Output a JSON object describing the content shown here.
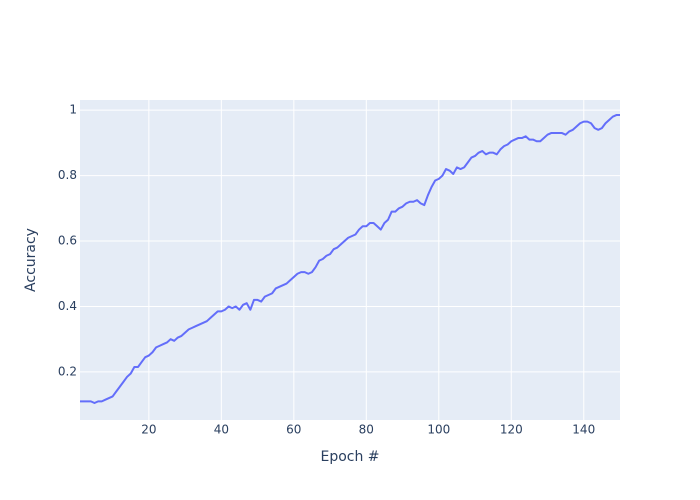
{
  "chart_data": {
    "type": "line",
    "xlabel": "Epoch #",
    "ylabel": "Accuracy",
    "x": [
      1,
      2,
      3,
      4,
      5,
      6,
      7,
      8,
      9,
      10,
      11,
      12,
      13,
      14,
      15,
      16,
      17,
      18,
      19,
      20,
      21,
      22,
      23,
      24,
      25,
      26,
      27,
      28,
      29,
      30,
      31,
      32,
      33,
      34,
      35,
      36,
      37,
      38,
      39,
      40,
      41,
      42,
      43,
      44,
      45,
      46,
      47,
      48,
      49,
      50,
      51,
      52,
      53,
      54,
      55,
      56,
      57,
      58,
      59,
      60,
      61,
      62,
      63,
      64,
      65,
      66,
      67,
      68,
      69,
      70,
      71,
      72,
      73,
      74,
      75,
      76,
      77,
      78,
      79,
      80,
      81,
      82,
      83,
      84,
      85,
      86,
      87,
      88,
      89,
      90,
      91,
      92,
      93,
      94,
      95,
      96,
      97,
      98,
      99,
      100,
      101,
      102,
      103,
      104,
      105,
      106,
      107,
      108,
      109,
      110,
      111,
      112,
      113,
      114,
      115,
      116,
      117,
      118,
      119,
      120,
      121,
      122,
      123,
      124,
      125,
      126,
      127,
      128,
      129,
      130,
      131,
      132,
      133,
      134,
      135,
      136,
      137,
      138,
      139,
      140,
      141,
      142,
      143,
      144,
      145,
      146,
      147,
      148,
      149,
      150
    ],
    "values": [
      0.11,
      0.11,
      0.11,
      0.11,
      0.105,
      0.11,
      0.11,
      0.115,
      0.12,
      0.125,
      0.14,
      0.155,
      0.17,
      0.185,
      0.195,
      0.215,
      0.215,
      0.23,
      0.245,
      0.25,
      0.26,
      0.275,
      0.28,
      0.285,
      0.29,
      0.3,
      0.295,
      0.305,
      0.31,
      0.32,
      0.33,
      0.335,
      0.34,
      0.345,
      0.35,
      0.355,
      0.365,
      0.375,
      0.385,
      0.385,
      0.39,
      0.4,
      0.395,
      0.4,
      0.39,
      0.405,
      0.41,
      0.39,
      0.42,
      0.42,
      0.415,
      0.43,
      0.435,
      0.44,
      0.455,
      0.46,
      0.465,
      0.47,
      0.48,
      0.49,
      0.5,
      0.505,
      0.505,
      0.5,
      0.505,
      0.52,
      0.54,
      0.545,
      0.555,
      0.56,
      0.575,
      0.58,
      0.59,
      0.6,
      0.61,
      0.615,
      0.62,
      0.635,
      0.645,
      0.645,
      0.655,
      0.655,
      0.645,
      0.635,
      0.655,
      0.665,
      0.69,
      0.69,
      0.7,
      0.705,
      0.715,
      0.72,
      0.72,
      0.725,
      0.715,
      0.71,
      0.74,
      0.765,
      0.785,
      0.79,
      0.8,
      0.82,
      0.815,
      0.805,
      0.825,
      0.82,
      0.825,
      0.84,
      0.855,
      0.86,
      0.87,
      0.875,
      0.865,
      0.87,
      0.87,
      0.865,
      0.88,
      0.89,
      0.895,
      0.905,
      0.91,
      0.915,
      0.915,
      0.92,
      0.91,
      0.91,
      0.905,
      0.905,
      0.915,
      0.925,
      0.93,
      0.93,
      0.93,
      0.93,
      0.925,
      0.935,
      0.94,
      0.95,
      0.96,
      0.965,
      0.965,
      0.96,
      0.945,
      0.94,
      0.945,
      0.96,
      0.97,
      0.98,
      0.985,
      0.985
    ],
    "color": "#636efa",
    "xlim": [
      1,
      150
    ],
    "ylim": [
      0.053,
      1.031
    ],
    "xticks": [
      20,
      40,
      60,
      80,
      100,
      120,
      140
    ],
    "yticks": [
      0.2,
      0.4,
      0.6,
      0.8,
      1
    ],
    "grid": true
  }
}
